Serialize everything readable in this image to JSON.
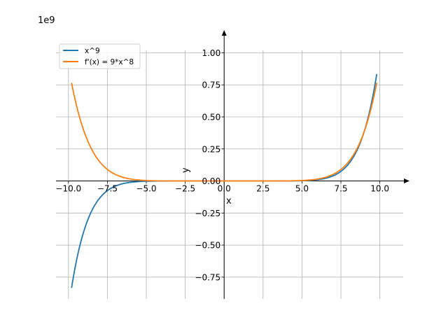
{
  "chart_data": {
    "type": "line",
    "offset_text": "1e9",
    "xlabel": "x",
    "ylabel": "y",
    "xlim": [
      -10.8,
      11.5
    ],
    "ylim": [
      -0.92,
      1.15
    ],
    "x_ticks": [
      -10.0,
      -7.5,
      -5.0,
      -2.5,
      0.0,
      2.5,
      5.0,
      7.5,
      10.0
    ],
    "x_tick_labels": [
      "−10.0",
      "−7.5",
      "−5.0",
      "−2.5",
      "0.0",
      "2.5",
      "5.0",
      "7.5",
      "10.0"
    ],
    "y_ticks": [
      -0.75,
      -0.5,
      -0.25,
      0.0,
      0.25,
      0.5,
      0.75,
      1.0
    ],
    "y_tick_labels": [
      "−0.75",
      "−0.50",
      "−0.25",
      "0.00",
      "0.25",
      "0.50",
      "0.75",
      "1.00"
    ],
    "grid": true,
    "legend_position": "top-left",
    "x_range": [
      -9.8,
      9.8
    ],
    "series": [
      {
        "name": "x^9",
        "color": "#1f77b4",
        "expr": "x^9"
      },
      {
        "name": "f'(x) = 9*x^8",
        "color": "#ff7f0e",
        "expr": "9*x^8"
      }
    ]
  },
  "legend": {
    "items": [
      "x^9",
      "f'(x) = 9*x^8"
    ]
  }
}
